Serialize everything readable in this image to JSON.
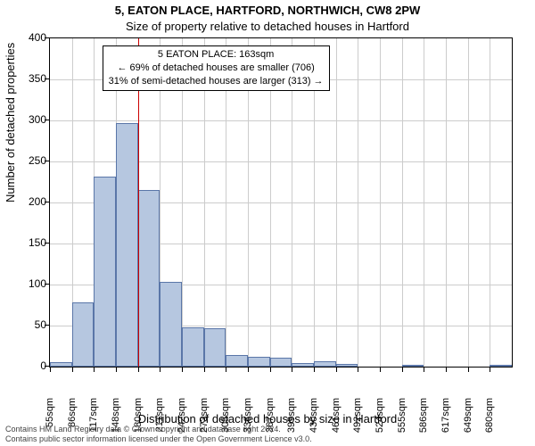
{
  "title_line1": "5, EATON PLACE, HARTFORD, NORTHWICH, CW8 2PW",
  "title_line2": "Size of property relative to detached houses in Hartford",
  "title_fontsize1": 13,
  "title_fontsize2": 13,
  "title_top1": 4,
  "title_top2": 22,
  "ylabel": "Number of detached properties",
  "xlabel": "Distribution of detached houses by size in Hartford",
  "chart": {
    "type": "histogram",
    "background_color": "#ffffff",
    "grid_color": "#cccccc",
    "bar_fill": "#b6c7e0",
    "bar_border": "#5a76a8",
    "marker_color": "#cc0000",
    "ylim": [
      0,
      400
    ],
    "ytick_step": 50,
    "x_categories": [
      "55sqm",
      "86sqm",
      "117sqm",
      "148sqm",
      "180sqm",
      "211sqm",
      "242sqm",
      "273sqm",
      "305sqm",
      "336sqm",
      "367sqm",
      "399sqm",
      "430sqm",
      "461sqm",
      "492sqm",
      "524sqm",
      "555sqm",
      "586sqm",
      "617sqm",
      "649sqm",
      "680sqm"
    ],
    "values": [
      5,
      78,
      232,
      297,
      215,
      103,
      48,
      47,
      14,
      12,
      11,
      4,
      6,
      3,
      0,
      0,
      2,
      0,
      0,
      0,
      2
    ],
    "marker_index": 4
  },
  "annotation": {
    "line1": "5 EATON PLACE: 163sqm",
    "line2": "← 69% of detached houses are smaller (706)",
    "line3": "31% of semi-detached houses are larger (313) →"
  },
  "footer_line1": "Contains HM Land Registry data © Crown copyright and database right 2024.",
  "footer_line2": "Contains public sector information licensed under the Open Government Licence v3.0."
}
